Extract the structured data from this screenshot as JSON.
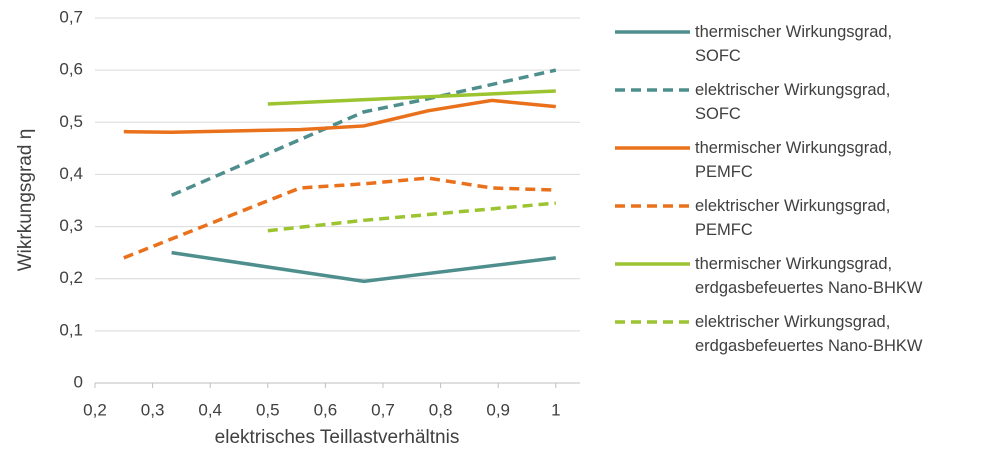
{
  "chart_data": {
    "type": "line",
    "xlabel": "elektrisches Teillastverhältnis",
    "ylabel": "Wikrkungsgrad η",
    "xlim": [
      0.2,
      1.042
    ],
    "xticks": [
      {
        "value": 0.2,
        "label": "0,2"
      },
      {
        "value": 0.3,
        "label": "0,3"
      },
      {
        "value": 0.4,
        "label": "0,4"
      },
      {
        "value": 0.5,
        "label": "0,5"
      },
      {
        "value": 0.6,
        "label": "0,6"
      },
      {
        "value": 0.7,
        "label": "0,7"
      },
      {
        "value": 0.8,
        "label": "0,8"
      },
      {
        "value": 0.9,
        "label": "0,9"
      },
      1
    ],
    "ylim": [
      0,
      0.7
    ],
    "yticks": [
      0,
      {
        "value": 0.1,
        "label": "0,1"
      },
      {
        "value": 0.2,
        "label": "0,2"
      },
      {
        "value": 0.3,
        "label": "0,3"
      },
      {
        "value": 0.4,
        "label": "0,4"
      },
      {
        "value": 0.5,
        "label": "0,5"
      },
      {
        "value": 0.6,
        "label": "0,6"
      },
      {
        "value": 0.7,
        "label": "0,7"
      }
    ],
    "grid": true,
    "legend": "right",
    "series": [
      {
        "name": "thermischer Wirkungsgrad,\nSOFC",
        "color": "#4e8f8d",
        "dashed": false,
        "x": [
          0.333,
          0.667,
          1
        ],
        "values": [
          0.25,
          0.195,
          0.24
        ]
      },
      {
        "name": "elektrischer Wirkungsgrad,\nSOFC",
        "color": "#4e8f8d",
        "dashed": true,
        "x": [
          0.333,
          0.667,
          0.778,
          1
        ],
        "values": [
          0.36,
          0.52,
          0.545,
          0.6
        ]
      },
      {
        "name": "thermischer Wirkungsgrad,\nPEMFC",
        "color": "#e9711c",
        "dashed": false,
        "x": [
          0.25,
          0.333,
          0.556,
          0.667,
          0.778,
          0.889,
          1
        ],
        "values": [
          0.482,
          0.481,
          0.486,
          0.493,
          0.522,
          0.542,
          0.53
        ]
      },
      {
        "name": "elektrischer Wirkungsgrad,\nPEMFC",
        "color": "#e9711c",
        "dashed": true,
        "x": [
          0.25,
          0.556,
          0.667,
          0.778,
          0.889,
          1
        ],
        "values": [
          0.24,
          0.374,
          0.382,
          0.393,
          0.374,
          0.37
        ]
      },
      {
        "name": "thermischer Wirkungsgrad,\nerdgasbefeuertes Nano-BHKW",
        "color": "#9bc430",
        "dashed": false,
        "x": [
          0.5,
          1
        ],
        "values": [
          0.535,
          0.56
        ]
      },
      {
        "name": "elektrischer Wirkungsgrad,\nerdgasbefeuertes Nano-BHKW",
        "color": "#9bc430",
        "dashed": true,
        "x": [
          0.5,
          0.667,
          1
        ],
        "values": [
          0.292,
          0.312,
          0.345
        ]
      }
    ]
  }
}
